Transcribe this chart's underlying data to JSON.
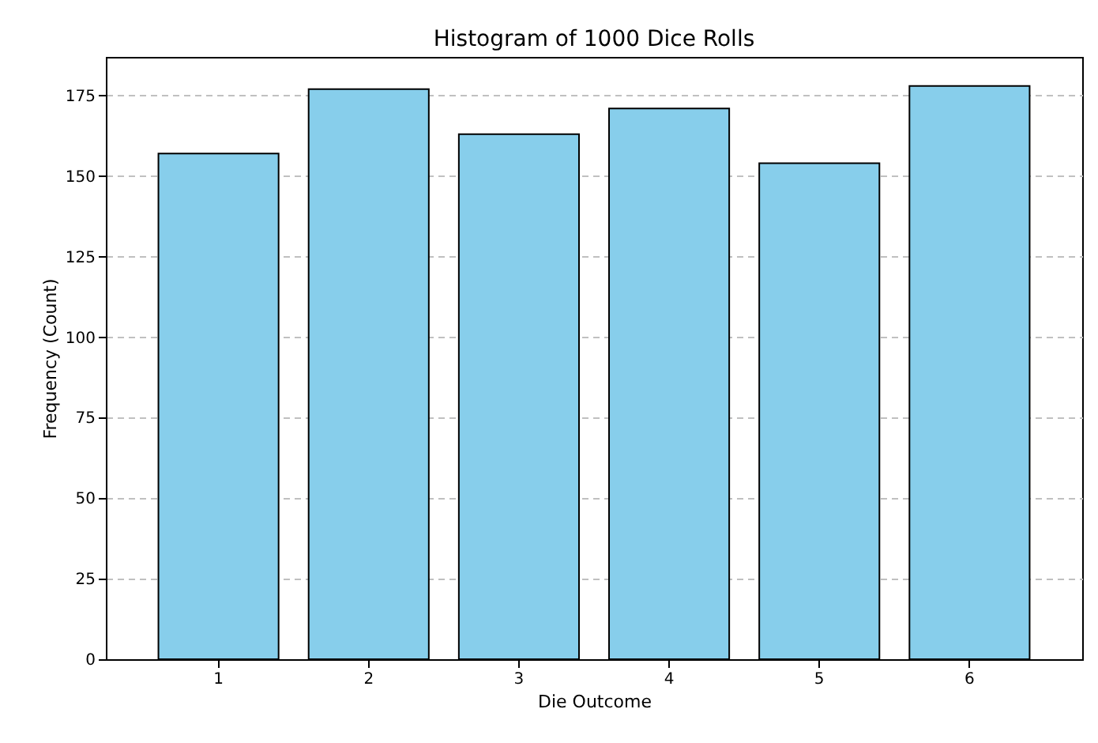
{
  "chart_data": {
    "type": "bar",
    "title": "Histogram of 1000 Dice Rolls",
    "xlabel": "Die Outcome",
    "ylabel": "Frequency (Count)",
    "categories": [
      "1",
      "2",
      "3",
      "4",
      "5",
      "6"
    ],
    "values": [
      157,
      177,
      163,
      171,
      154,
      178
    ],
    "color": "#87ceeb",
    "ylim": [
      0,
      187
    ],
    "yticks": [
      0,
      25,
      50,
      75,
      100,
      125,
      150,
      175
    ],
    "grid": "y"
  }
}
